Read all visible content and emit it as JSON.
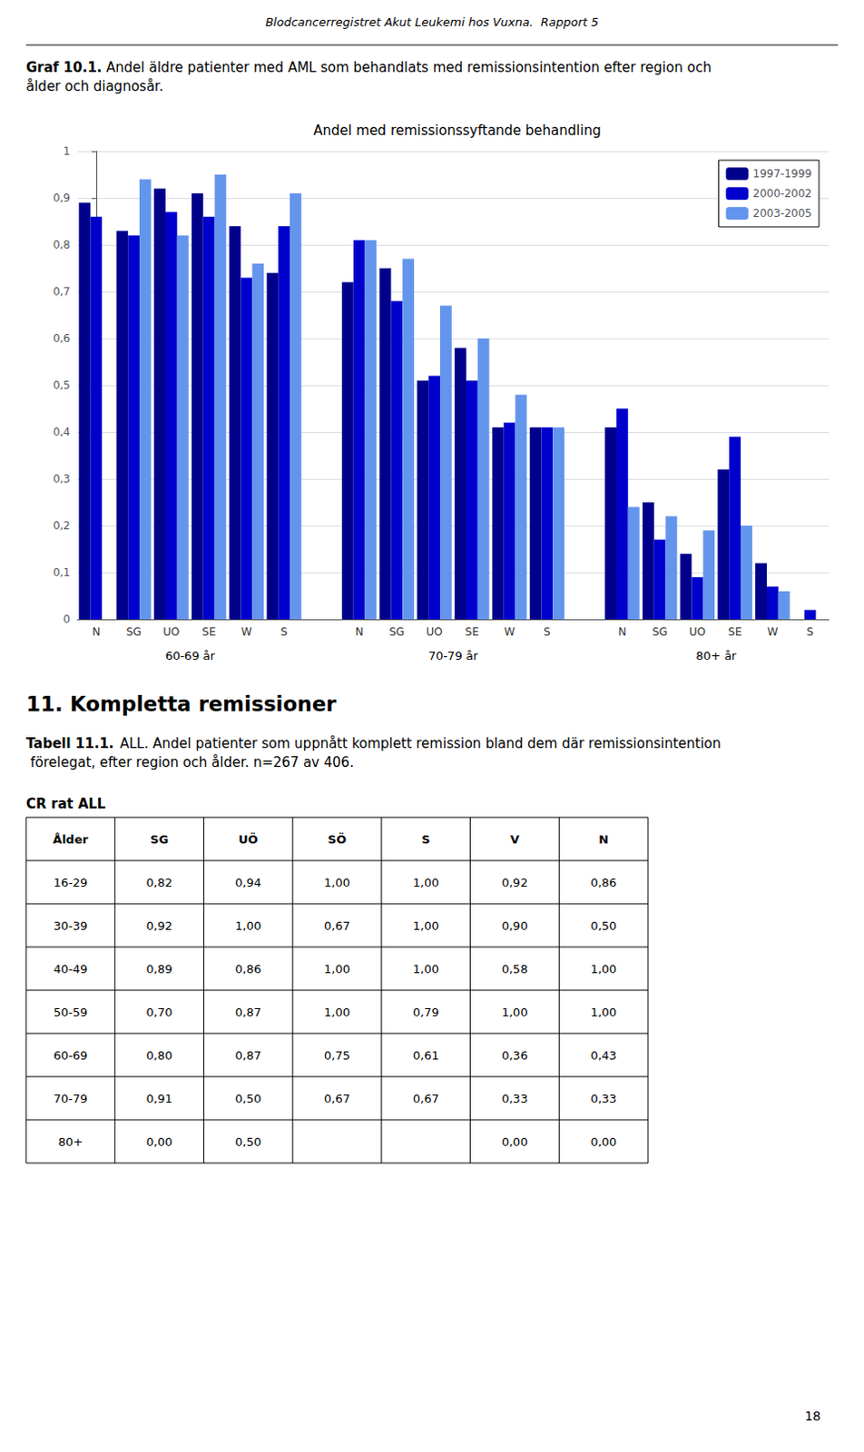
{
  "header": "Blodcancerregistret Akut Leukemi hos Vuxna.  Rapport 5",
  "page_number": "18",
  "chart_data": [
    {
      "type": "bar",
      "caption_bold": "Graf 10.1.",
      "caption": " Andel äldre patienter med AML som behandlats med remissionsintention efter region och ålder och diagnosår.",
      "title": "Andel med remissionssyftande behandling",
      "categories": [
        "N",
        "SG",
        "UO",
        "SE",
        "W",
        "S",
        "N",
        "SG",
        "UO",
        "SE",
        "W",
        "S",
        "N",
        "SG",
        "UO",
        "SE",
        "W",
        "S"
      ],
      "groups": [
        "60-69 år",
        "70-79 år",
        "80+ år"
      ],
      "series": [
        {
          "name": "1997-1999",
          "color": "#00008B",
          "values": [
            0.89,
            0.83,
            0.92,
            0.91,
            0.84,
            0.74,
            0.72,
            0.75,
            0.51,
            0.58,
            0.41,
            0.41,
            0.41,
            0.25,
            0.14,
            0.32,
            0.12,
            null
          ]
        },
        {
          "name": "2000-2002",
          "color": "#0000CD",
          "values": [
            0.86,
            0.82,
            0.87,
            0.86,
            0.73,
            0.84,
            0.81,
            0.68,
            0.52,
            0.51,
            0.42,
            0.41,
            0.45,
            0.17,
            0.09,
            0.39,
            0.07,
            0.02
          ]
        },
        {
          "name": "2003-2005",
          "color": "#6495ED",
          "values": [
            null,
            0.94,
            0.82,
            0.95,
            0.76,
            0.91,
            0.81,
            0.77,
            0.67,
            0.6,
            0.48,
            0.41,
            0.24,
            0.22,
            0.19,
            0.2,
            0.06,
            null
          ]
        }
      ],
      "ylim": [
        0,
        1.0
      ],
      "yticks": [
        0,
        {
          "value": 0.1,
          "label": "0,1"
        },
        {
          "value": 0.2,
          "label": "0,2"
        },
        {
          "value": 0.3,
          "label": "0,3"
        },
        {
          "value": 0.4,
          "label": "0,4"
        },
        {
          "value": 0.5,
          "label": "0,5"
        },
        {
          "value": 0.6,
          "label": "0,6"
        },
        {
          "value": 0.7,
          "label": "0,7"
        },
        {
          "value": 0.8,
          "label": "0,8"
        },
        {
          "value": 0.9,
          "label": "0,9"
        },
        1
      ],
      "grid": true,
      "legend": "upper right"
    },
    {
      "type": "table",
      "section_title": "11. Kompletta remissioner",
      "caption_bold": "Tabell 11.1.",
      "caption": " ALL. Andel patienter som uppnått komplett remission bland dem där remissionsintention förelegat, efter region och ålder. n=267 av 406.",
      "title": "CR rat ALL",
      "columns": [
        "Ålder",
        "SG",
        "UÖ",
        "SÖ",
        "S",
        "V",
        "N"
      ],
      "rows": [
        [
          "16-29",
          "0,82",
          "0,94",
          "1,00",
          "1,00",
          "0,92",
          "0,86"
        ],
        [
          "30-39",
          "0,92",
          "1,00",
          "0,67",
          "1,00",
          "0,90",
          "0,50"
        ],
        [
          "40-49",
          "0,89",
          "0,86",
          "1,00",
          "1,00",
          "0,58",
          "1,00"
        ],
        [
          "50-59",
          "0,70",
          "0,87",
          "1,00",
          "0,79",
          "1,00",
          "1,00"
        ],
        [
          "60-69",
          "0,80",
          "0,87",
          "0,75",
          "0,61",
          "0,36",
          "0,43"
        ],
        [
          "70-79",
          "0,91",
          "0,50",
          "0,67",
          "0,67",
          "0,33",
          "0,33"
        ],
        [
          "80+",
          "0,00",
          "0,50",
          null,
          null,
          "0,00",
          "0,00"
        ]
      ]
    }
  ]
}
